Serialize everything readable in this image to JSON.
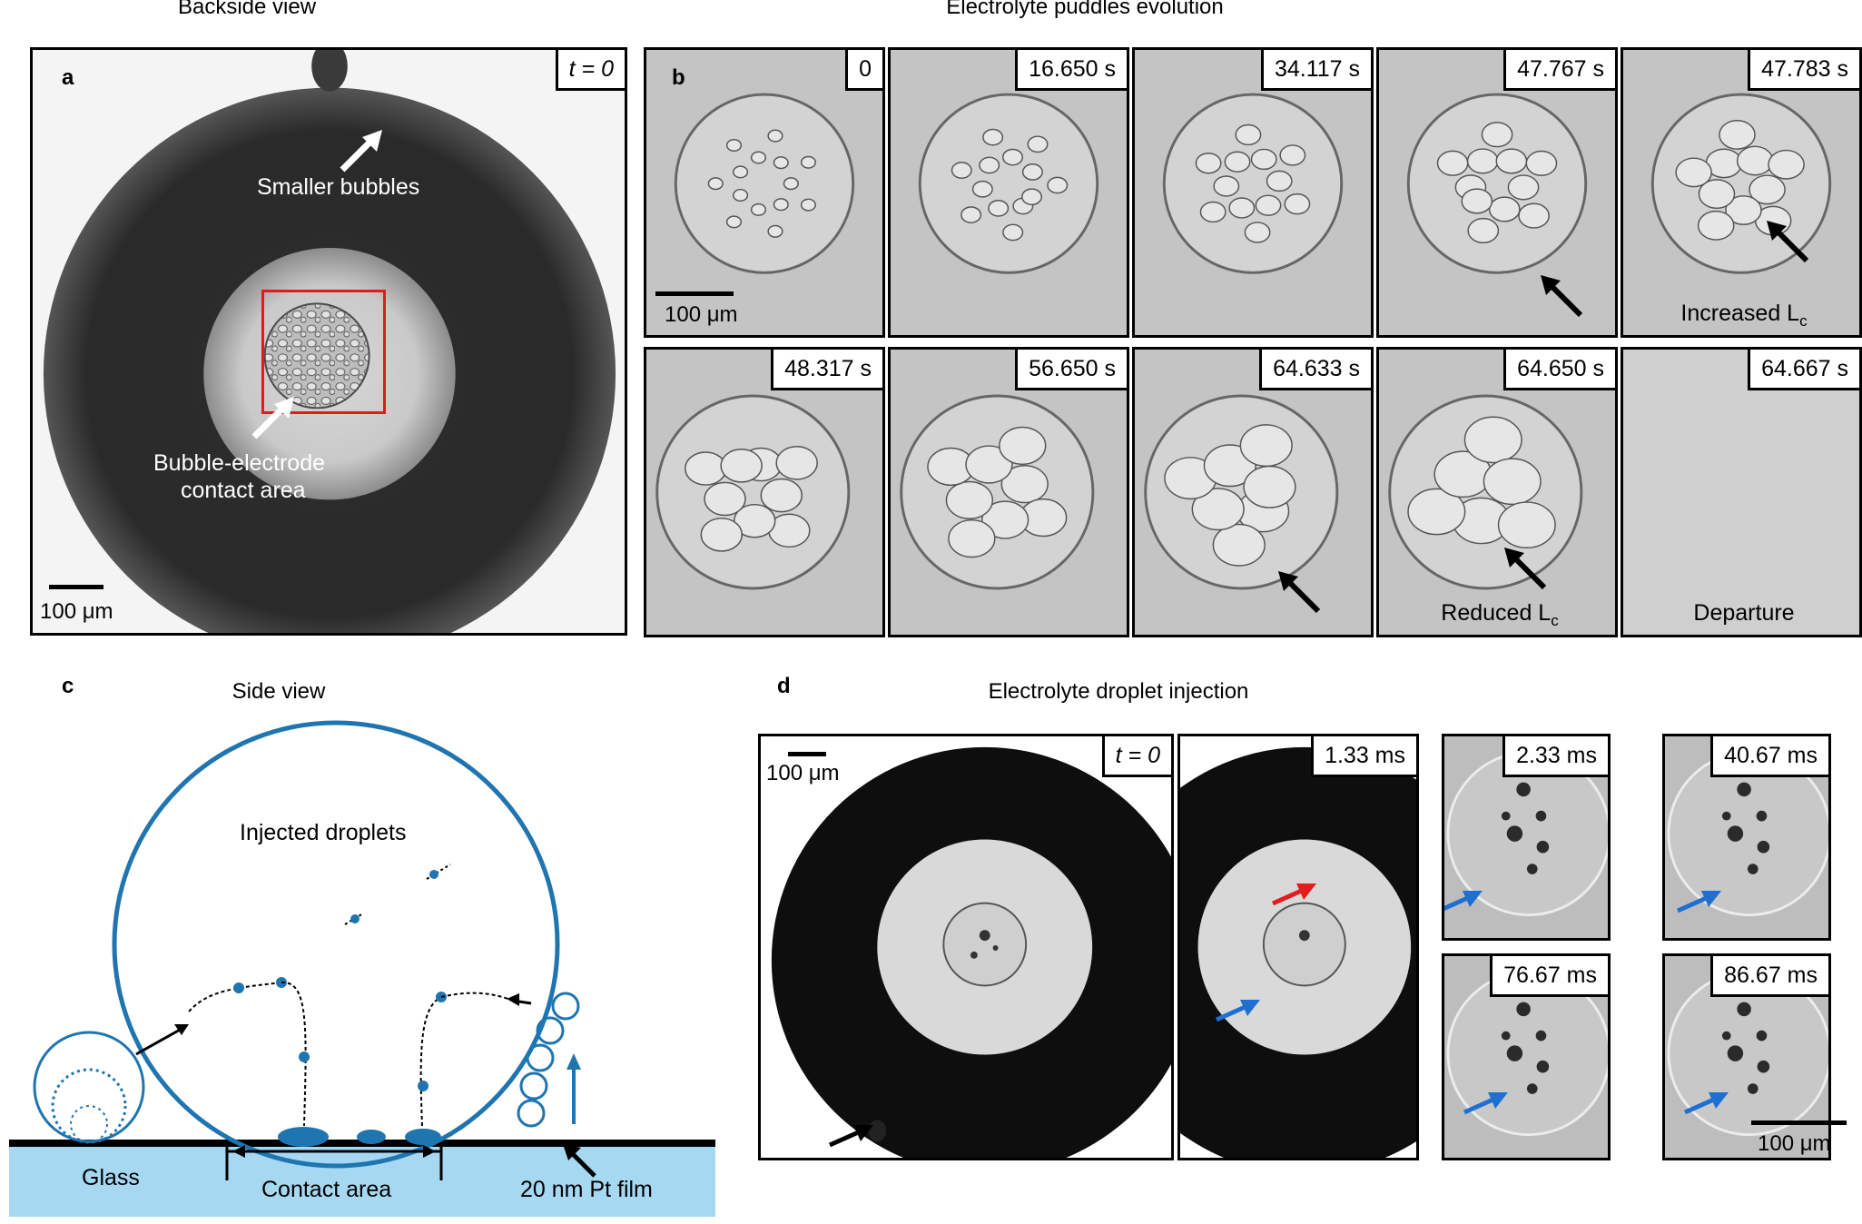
{
  "headers": {
    "backside": "Backside view",
    "puddles": "Electrolyte puddles evolution",
    "side": "Side view",
    "injection": "Electrolyte droplet injection"
  },
  "panel_labels": {
    "a": "a",
    "b": "b",
    "c": "c",
    "d": "d"
  },
  "panel_a": {
    "time": "t = 0",
    "annotation_top": "Smaller bubbles",
    "annotation_center_line1": "Bubble-electrode",
    "annotation_center_line2": "contact area",
    "scale": "100 μm"
  },
  "panel_b": {
    "scale": "100 μm",
    "frames": [
      {
        "time": "0",
        "caption": ""
      },
      {
        "time": "16.650 s",
        "caption": ""
      },
      {
        "time": "34.117 s",
        "caption": ""
      },
      {
        "time": "47.767 s",
        "caption": ""
      },
      {
        "time": "47.783 s",
        "caption": "Increased L",
        "caption_sub": "c"
      },
      {
        "time": "48.317 s",
        "caption": ""
      },
      {
        "time": "56.650 s",
        "caption": ""
      },
      {
        "time": "64.633 s",
        "caption": ""
      },
      {
        "time": "64.650 s",
        "caption": "Reduced L",
        "caption_sub": "c"
      },
      {
        "time": "64.667 s",
        "caption": "Departure"
      }
    ]
  },
  "panel_c": {
    "droplets_label": "Injected droplets",
    "glass": "Glass",
    "contact": "Contact area",
    "film": "20 nm Pt film"
  },
  "panel_d": {
    "scale_left": "100 μm",
    "scale_right": "100 μm",
    "frames": [
      {
        "time": "t = 0"
      },
      {
        "time": "1.33 ms"
      },
      {
        "time": "2.33 ms"
      },
      {
        "time": "40.67 ms"
      },
      {
        "time": "76.67 ms"
      },
      {
        "time": "86.67 ms"
      }
    ]
  },
  "colors": {
    "accent_blue": "#1f75b0",
    "glass_fill": "#a6d8f2",
    "red_box": "#e11b1b",
    "arrow_red": "#e51c1c",
    "arrow_blue": "#1f6fd1"
  }
}
